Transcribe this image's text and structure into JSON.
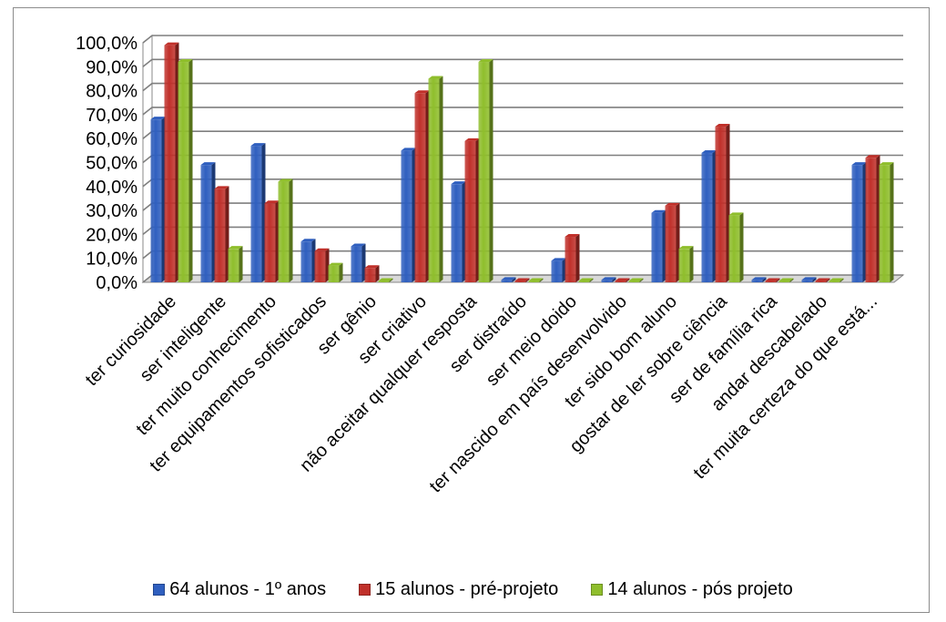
{
  "chart_data": {
    "type": "bar",
    "title": "",
    "xlabel": "",
    "ylabel": "",
    "ylim": [
      0,
      100
    ],
    "yticks": [
      "0,0%",
      "10,0%",
      "20,0%",
      "30,0%",
      "40,0%",
      "50,0%",
      "60,0%",
      "70,0%",
      "80,0%",
      "90,0%",
      "100,0%"
    ],
    "grid": true,
    "legend_position": "bottom",
    "categories": [
      "ter curiosidade",
      "ser inteligente",
      "ter muito conhecimento",
      "ter equipamentos sofisticados",
      "ser gênio",
      "ser criativo",
      "não aceitar qualquer resposta",
      "ser distraído",
      "ser meio doido",
      "ter nascido em país desenvolvido",
      "ter sido bom aluno",
      "gostar de ler sobre ciência",
      "ser de família rica",
      "andar descabelado",
      "ter muita certeza do que está..."
    ],
    "series": [
      {
        "name": "64 alunos - 1º anos",
        "color": "#2f5fbf",
        "values": [
          68,
          49,
          57,
          17,
          15,
          55,
          41,
          1,
          9,
          1,
          29,
          54,
          1,
          1,
          49
        ]
      },
      {
        "name": "15 alunos - pré-projeto",
        "color": "#c0302a",
        "values": [
          99,
          39,
          33,
          13,
          6,
          79,
          59,
          0,
          19,
          0,
          32,
          65,
          0,
          0,
          52
        ]
      },
      {
        "name": "14 alunos - pós projeto",
        "color": "#8fbe2c",
        "values": [
          92,
          14,
          42,
          7,
          0,
          85,
          92,
          0,
          0,
          0,
          14,
          28,
          0,
          0,
          49
        ]
      }
    ]
  }
}
